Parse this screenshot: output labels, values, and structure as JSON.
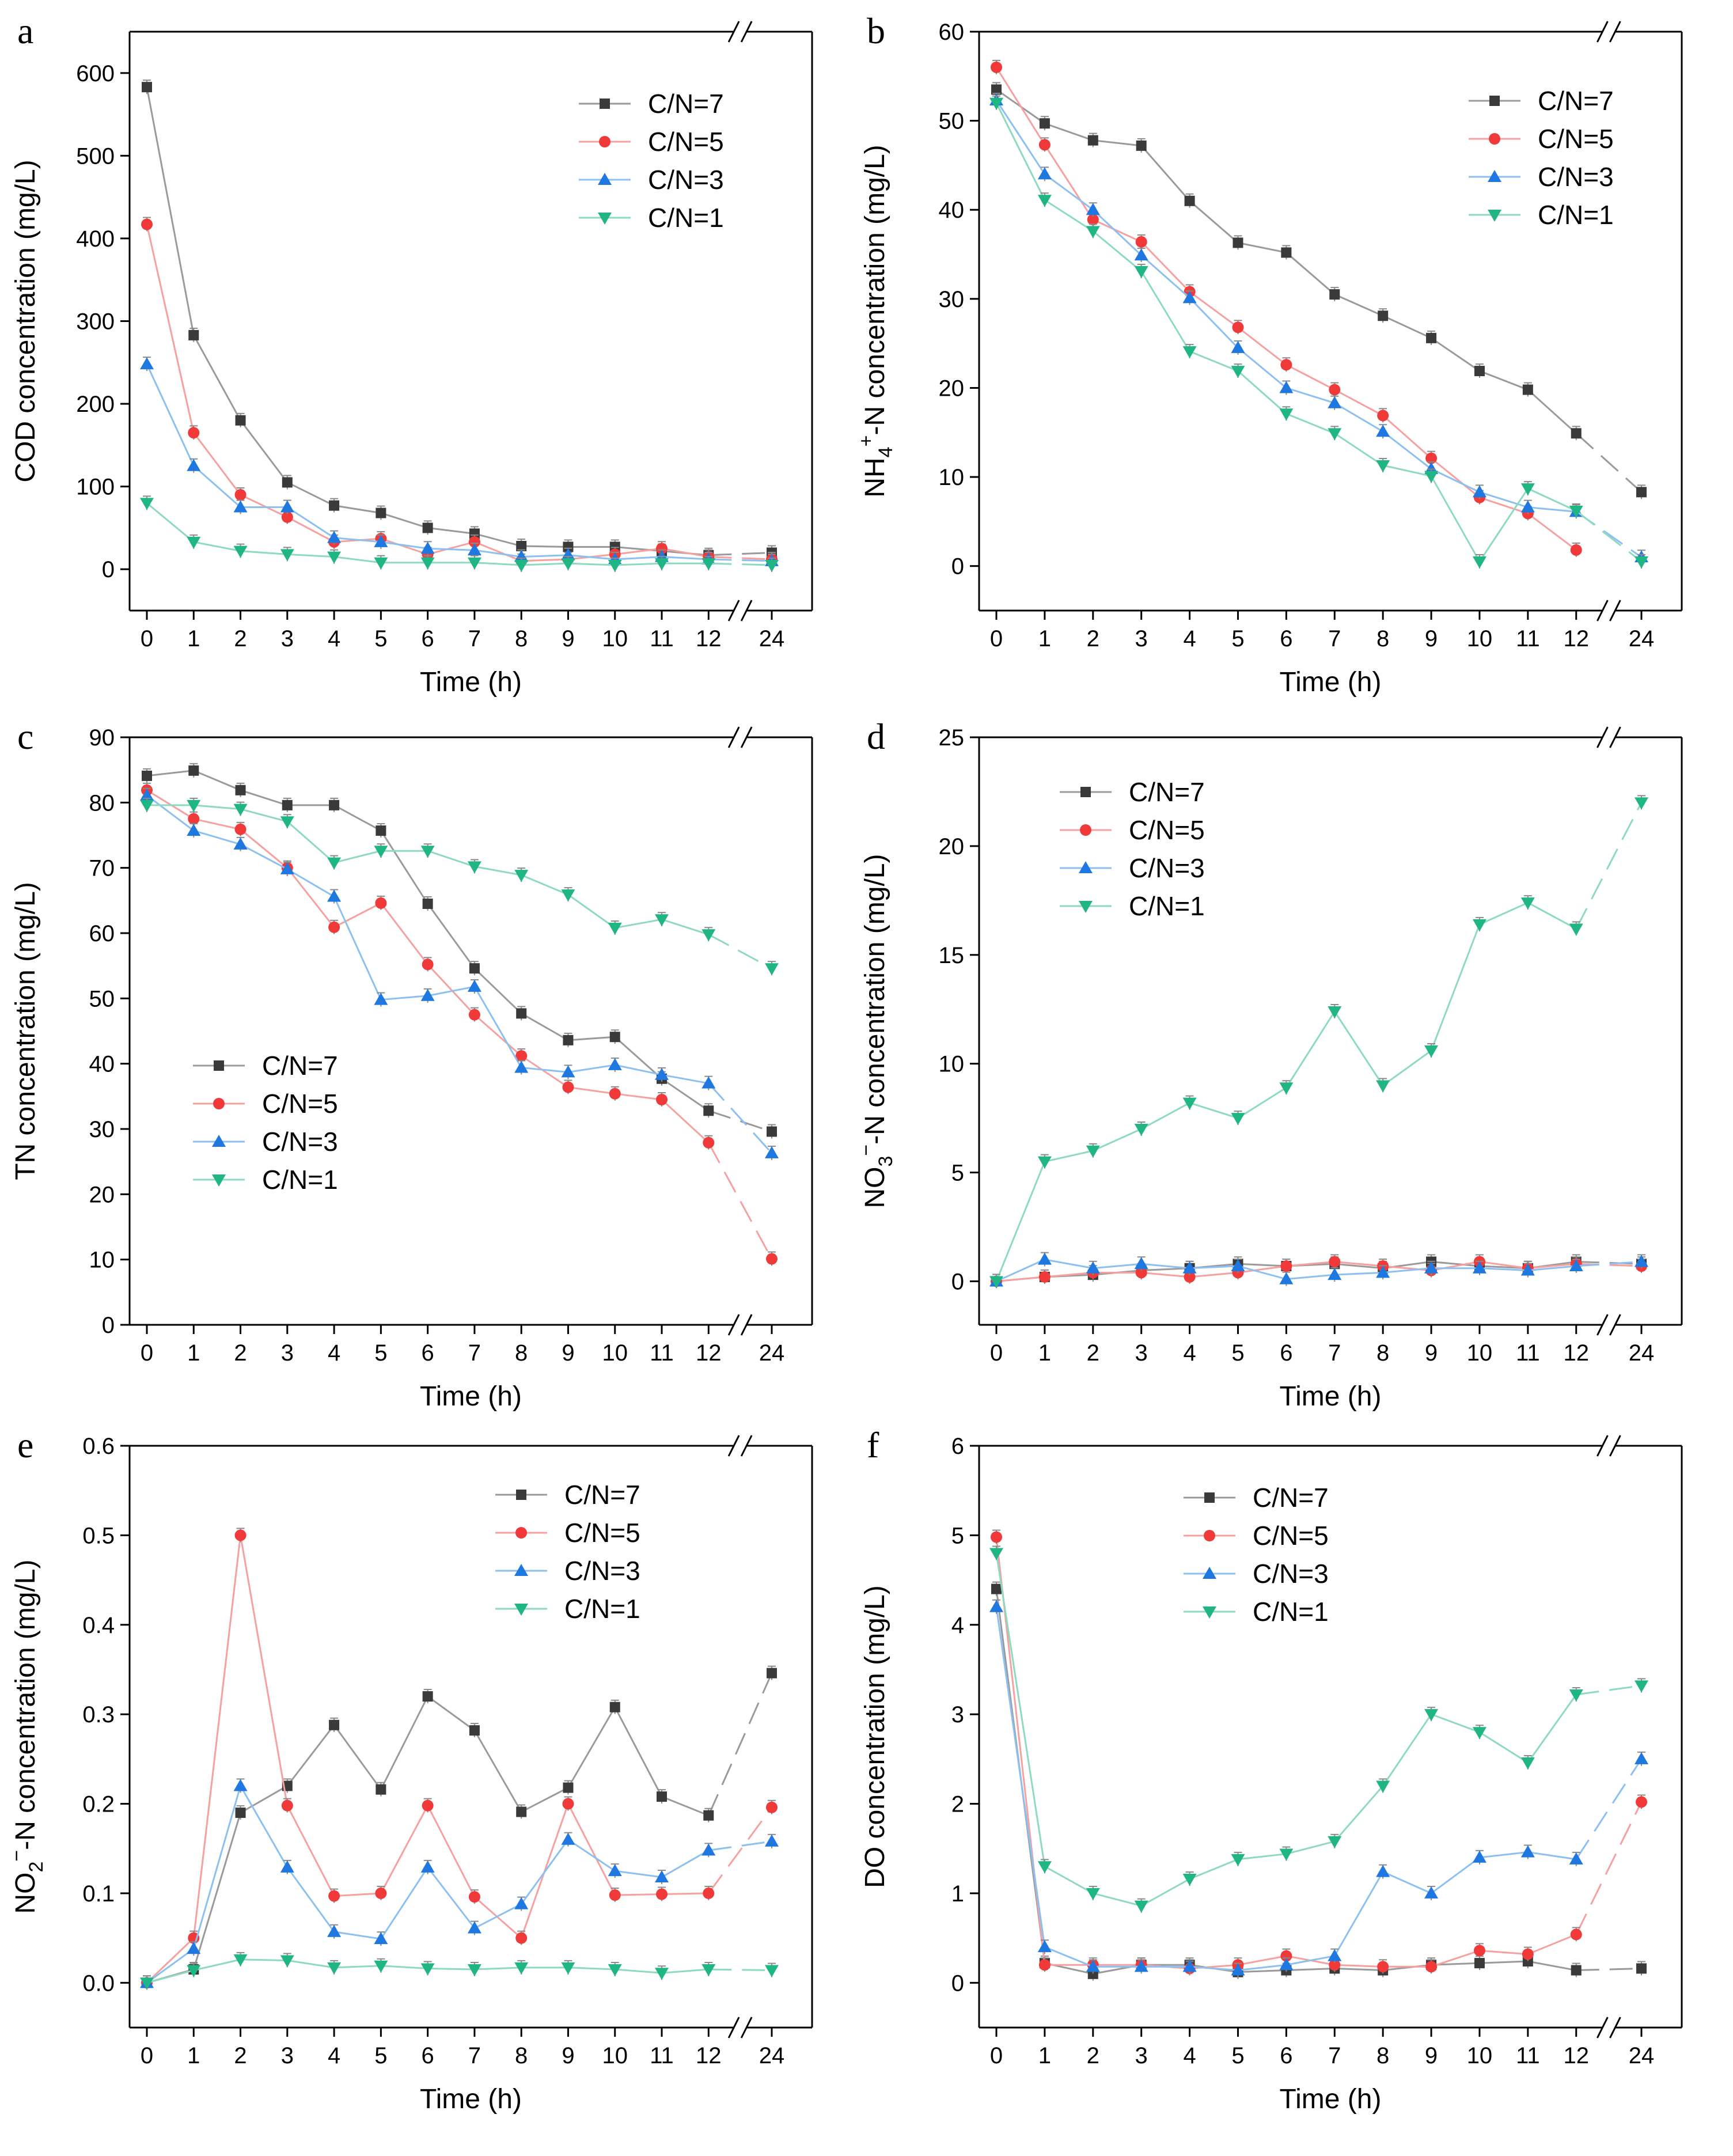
{
  "series_colors": {
    "C/N=7": "#3a3a3a",
    "C/N=5": "#f03a3a",
    "C/N=3": "#1f77e0",
    "C/N=1": "#20b585"
  },
  "line_colors": {
    "C/N=7": "#9a9a9a",
    "C/N=5": "#f7a0a0",
    "C/N=3": "#8cc0f0",
    "C/N=1": "#8edac0"
  },
  "chart_data": [
    {
      "panel": "a",
      "type": "line",
      "ylabel": "COD concentration (mg/L)",
      "xlabel": "Time (h)",
      "categories": [
        "0",
        "1",
        "2",
        "3",
        "4",
        "5",
        "6",
        "7",
        "8",
        "9",
        "10",
        "11",
        "12",
        "24"
      ],
      "ylim": [
        -50,
        650
      ],
      "yticks": [
        0,
        100,
        200,
        300,
        400,
        500,
        600
      ],
      "legend_position": "top-right",
      "series": [
        {
          "name": "C/N=7",
          "marker": "square",
          "values": [
            583,
            283,
            180,
            105,
            77,
            68,
            50,
            43,
            28,
            27,
            27,
            22,
            17,
            20
          ]
        },
        {
          "name": "C/N=5",
          "marker": "circle",
          "values": [
            417,
            165,
            90,
            63,
            33,
            37,
            18,
            33,
            10,
            12,
            18,
            25,
            15,
            12
          ]
        },
        {
          "name": "C/N=3",
          "marker": "triangle-up",
          "values": [
            248,
            125,
            75,
            75,
            38,
            33,
            25,
            23,
            15,
            17,
            12,
            15,
            12,
            10
          ]
        },
        {
          "name": "C/N=1",
          "marker": "triangle-down",
          "values": [
            80,
            33,
            22,
            18,
            15,
            8,
            8,
            8,
            5,
            7,
            5,
            7,
            7,
            5
          ]
        }
      ]
    },
    {
      "panel": "b",
      "type": "line",
      "ylabel": "NH4+-N concentration (mg/L)",
      "ylabel_main": "NH",
      "ylabel_sub": "4",
      "ylabel_sup": "+",
      "ylabel_tail": "-N concentration (mg/L)",
      "xlabel": "Time (h)",
      "categories": [
        "0",
        "1",
        "2",
        "3",
        "4",
        "5",
        "6",
        "7",
        "8",
        "9",
        "10",
        "11",
        "12",
        "24"
      ],
      "ylim": [
        -5,
        60
      ],
      "yticks": [
        0,
        10,
        20,
        30,
        40,
        50,
        60
      ],
      "legend_position": "top-right",
      "series": [
        {
          "name": "C/N=7",
          "marker": "square",
          "values": [
            53.5,
            49.7,
            47.8,
            47.2,
            41,
            36.3,
            35.2,
            30.5,
            28.1,
            25.6,
            21.9,
            19.8,
            14.9,
            8.3
          ]
        },
        {
          "name": "C/N=5",
          "marker": "circle",
          "values": [
            56,
            47.3,
            38.9,
            36.4,
            30.8,
            26.8,
            22.6,
            19.8,
            16.9,
            12.1,
            7.7,
            5.9,
            1.8,
            null
          ]
        },
        {
          "name": "C/N=3",
          "marker": "triangle-up",
          "values": [
            52.3,
            44,
            40,
            34.9,
            30.1,
            24.5,
            20,
            18.3,
            15.1,
            10.9,
            8.3,
            6.6,
            6.1,
            1
          ]
        },
        {
          "name": "C/N=1",
          "marker": "triangle-down",
          "values": [
            52,
            41.1,
            37.6,
            33.1,
            24.1,
            21.9,
            17.1,
            14.9,
            11.3,
            10.1,
            0.5,
            8.7,
            6.2,
            0.5
          ]
        }
      ]
    },
    {
      "panel": "c",
      "type": "line",
      "ylabel": "TN concentration (mg/L)",
      "xlabel": "Time (h)",
      "categories": [
        "0",
        "1",
        "2",
        "3",
        "4",
        "5",
        "6",
        "7",
        "8",
        "9",
        "10",
        "11",
        "12",
        "24"
      ],
      "ylim": [
        0,
        90
      ],
      "yticks": [
        0,
        10,
        20,
        30,
        40,
        50,
        60,
        70,
        80,
        90
      ],
      "legend_position": "bottom-left",
      "series": [
        {
          "name": "C/N=7",
          "marker": "square",
          "values": [
            84.1,
            84.9,
            81.9,
            79.6,
            79.6,
            75.7,
            64.5,
            54.6,
            47.7,
            43.6,
            44.1,
            37.7,
            32.8,
            29.6
          ]
        },
        {
          "name": "C/N=5",
          "marker": "circle",
          "values": [
            81.9,
            77.5,
            75.9,
            70,
            60.9,
            64.6,
            55.2,
            47.5,
            41.2,
            36.4,
            35.4,
            34.5,
            27.9,
            10.1
          ]
        },
        {
          "name": "C/N=3",
          "marker": "triangle-up",
          "values": [
            81.1,
            75.7,
            73.6,
            69.8,
            65.6,
            49.8,
            50.4,
            51.8,
            39.4,
            38.7,
            39.8,
            38.3,
            37,
            26.3
          ]
        },
        {
          "name": "C/N=1",
          "marker": "triangle-down",
          "values": [
            79.6,
            79.6,
            79,
            77.1,
            70.8,
            72.6,
            72.6,
            70.2,
            68.9,
            65.9,
            60.8,
            62.1,
            59.8,
            54.6
          ]
        }
      ]
    },
    {
      "panel": "d",
      "type": "line",
      "ylabel": "NO3−-N concentration (mg/L)",
      "ylabel_main": "NO",
      "ylabel_sub": "3",
      "ylabel_sup": "−",
      "ylabel_tail": "-N concentration (mg/L)",
      "xlabel": "Time (h)",
      "categories": [
        "0",
        "1",
        "2",
        "3",
        "4",
        "5",
        "6",
        "7",
        "8",
        "9",
        "10",
        "11",
        "12",
        "24"
      ],
      "ylim": [
        -2,
        25
      ],
      "yticks": [
        0,
        5,
        10,
        15,
        20,
        25
      ],
      "legend_position": "top-left",
      "series": [
        {
          "name": "C/N=7",
          "marker": "square",
          "values": [
            0,
            0.2,
            0.3,
            0.5,
            0.6,
            0.8,
            0.7,
            0.8,
            0.6,
            0.9,
            0.7,
            0.6,
            0.9,
            0.8
          ]
        },
        {
          "name": "C/N=5",
          "marker": "circle",
          "values": [
            0,
            0.2,
            0.4,
            0.4,
            0.2,
            0.4,
            0.7,
            0.9,
            0.7,
            0.5,
            0.9,
            0.6,
            0.8,
            0.7
          ]
        },
        {
          "name": "C/N=3",
          "marker": "triangle-up",
          "values": [
            0,
            1,
            0.6,
            0.8,
            0.6,
            0.7,
            0.1,
            0.3,
            0.4,
            0.6,
            0.6,
            0.5,
            0.7,
            0.9
          ]
        },
        {
          "name": "C/N=1",
          "marker": "triangle-down",
          "values": [
            0,
            5.5,
            6,
            7,
            8.2,
            7.5,
            8.9,
            12.4,
            9,
            10.6,
            16.4,
            17.4,
            16.2,
            22
          ]
        }
      ]
    },
    {
      "panel": "e",
      "type": "line",
      "ylabel": "NO2−-N concentration (mg/L)",
      "ylabel_main": "NO",
      "ylabel_sub": "2",
      "ylabel_sup": "−",
      "ylabel_tail": "-N concentration (mg/L)",
      "xlabel": "Time (h)",
      "categories": [
        "0",
        "1",
        "2",
        "3",
        "4",
        "5",
        "6",
        "7",
        "8",
        "9",
        "10",
        "11",
        "12",
        "24"
      ],
      "ylim": [
        -0.05,
        0.6
      ],
      "yticks": [
        0.0,
        0.1,
        0.2,
        0.3,
        0.4,
        0.5,
        0.6
      ],
      "ytick_labels": [
        "0.0",
        "0.1",
        "0.2",
        "0.3",
        "0.4",
        "0.5",
        "0.6"
      ],
      "legend_position": "top-right",
      "series": [
        {
          "name": "C/N=7",
          "marker": "square",
          "values": [
            0,
            0.015,
            0.19,
            0.22,
            0.288,
            0.216,
            0.32,
            0.282,
            0.191,
            0.218,
            0.308,
            0.208,
            0.187,
            0.346
          ]
        },
        {
          "name": "C/N=5",
          "marker": "circle",
          "values": [
            0,
            0.05,
            0.5,
            0.198,
            0.097,
            0.1,
            0.198,
            0.096,
            0.05,
            0.2,
            0.098,
            0.099,
            0.1,
            0.196
          ]
        },
        {
          "name": "C/N=3",
          "marker": "triangle-up",
          "values": [
            0,
            0.038,
            0.22,
            0.129,
            0.057,
            0.049,
            0.129,
            0.061,
            0.088,
            0.16,
            0.125,
            0.118,
            0.148,
            0.158
          ]
        },
        {
          "name": "C/N=1",
          "marker": "triangle-down",
          "values": [
            0,
            0.014,
            0.026,
            0.025,
            0.017,
            0.019,
            0.016,
            0.015,
            0.017,
            0.017,
            0.015,
            0.011,
            0.015,
            0.014
          ]
        }
      ]
    },
    {
      "panel": "f",
      "type": "line",
      "ylabel": "DO concentration (mg/L)",
      "xlabel": "Time (h)",
      "categories": [
        "0",
        "1",
        "2",
        "3",
        "4",
        "5",
        "6",
        "7",
        "8",
        "9",
        "10",
        "11",
        "12",
        "24"
      ],
      "ylim": [
        -0.5,
        6
      ],
      "yticks": [
        0,
        1,
        2,
        3,
        4,
        5,
        6
      ],
      "legend_position": "top-left",
      "series": [
        {
          "name": "C/N=7",
          "marker": "square",
          "values": [
            4.4,
            0.22,
            0.1,
            0.2,
            0.2,
            0.12,
            0.14,
            0.16,
            0.14,
            0.2,
            0.22,
            0.24,
            0.14,
            0.16
          ]
        },
        {
          "name": "C/N=5",
          "marker": "circle",
          "values": [
            4.98,
            0.2,
            0.2,
            0.2,
            0.16,
            0.2,
            0.3,
            0.2,
            0.18,
            0.18,
            0.36,
            0.32,
            0.54,
            2.02
          ]
        },
        {
          "name": "C/N=3",
          "marker": "triangle-up",
          "values": [
            4.2,
            0.4,
            0.18,
            0.18,
            0.18,
            0.14,
            0.2,
            0.3,
            1.24,
            1,
            1.4,
            1.46,
            1.38,
            2.5
          ]
        },
        {
          "name": "C/N=1",
          "marker": "triangle-down",
          "values": [
            4.8,
            1.3,
            1,
            0.86,
            1.16,
            1.38,
            1.44,
            1.58,
            2.2,
            3,
            2.8,
            2.46,
            3.22,
            3.32
          ]
        }
      ]
    }
  ]
}
